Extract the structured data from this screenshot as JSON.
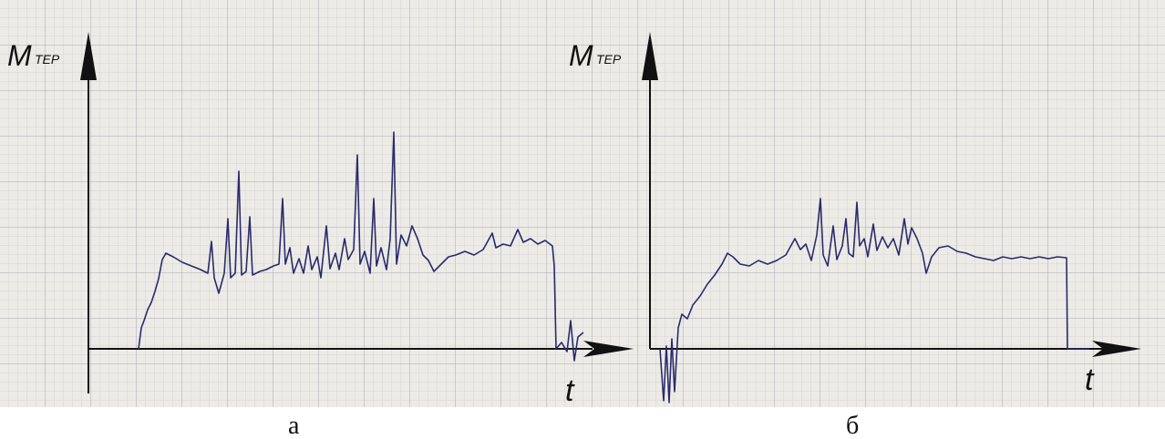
{
  "panels": [
    {
      "y_label": "M",
      "y_label_subscript": "ТЕР",
      "x_label": "t",
      "caption": "а"
    },
    {
      "y_label": "M",
      "y_label_subscript": "ТЕР",
      "x_label": "t",
      "caption": "б"
    }
  ]
}
